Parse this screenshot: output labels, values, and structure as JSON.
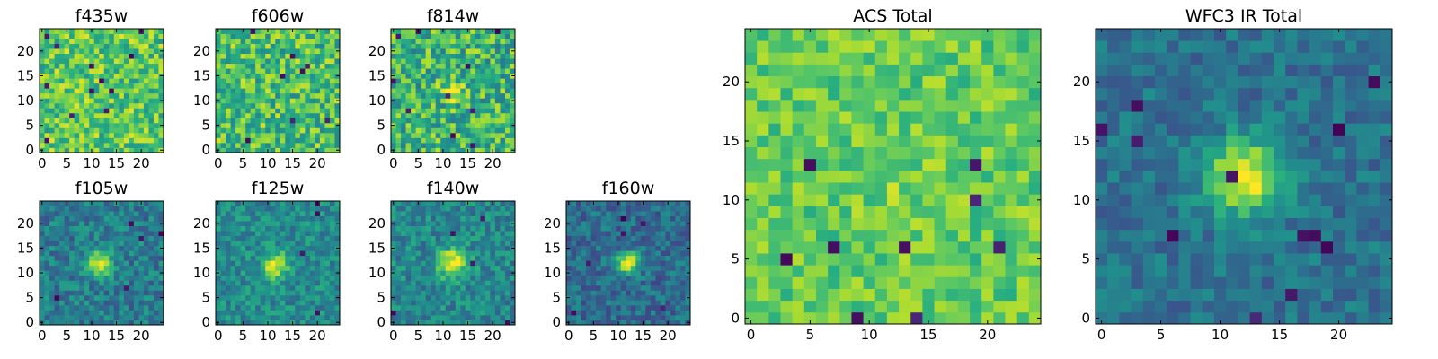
{
  "figure": {
    "description_free": true,
    "colormap": "viridis",
    "colors": {
      "viridis_dark": "#440154",
      "viridis_mid": "#21918c",
      "viridis_bright": "#fde725",
      "axes_frame": "#000000"
    }
  },
  "chart_data": [
    {
      "type": "heatmap",
      "title": "f435w",
      "grid_size": 25,
      "xticks": [
        0,
        5,
        10,
        15,
        20
      ],
      "yticks": [
        0,
        5,
        10,
        15,
        20
      ],
      "xlim": [
        -0.5,
        24.5
      ],
      "ylim": [
        -0.5,
        24.5
      ],
      "base_level": 0.74,
      "noise": 0.22,
      "source_peak": 0.0,
      "source_center": [
        12,
        12
      ],
      "source_sigma": 2.0,
      "dark_pixels": 12,
      "seed": 101
    },
    {
      "type": "heatmap",
      "title": "f606w",
      "grid_size": 25,
      "xticks": [
        0,
        5,
        10,
        15,
        20
      ],
      "yticks": [
        0,
        5,
        10,
        15,
        20
      ],
      "xlim": [
        -0.5,
        24.5
      ],
      "ylim": [
        -0.5,
        24.5
      ],
      "base_level": 0.7,
      "noise": 0.24,
      "source_peak": 0.0,
      "source_center": [
        12,
        12
      ],
      "source_sigma": 2.0,
      "dark_pixels": 8,
      "seed": 202
    },
    {
      "type": "heatmap",
      "title": "f814w",
      "grid_size": 25,
      "xticks": [
        0,
        5,
        10,
        15,
        20
      ],
      "yticks": [
        0,
        5,
        10,
        15,
        20
      ],
      "xlim": [
        -0.5,
        24.5
      ],
      "ylim": [
        -0.5,
        24.5
      ],
      "base_level": 0.66,
      "noise": 0.25,
      "source_peak": 0.25,
      "source_center": [
        12,
        12
      ],
      "source_sigma": 1.5,
      "dark_pixels": 10,
      "seed": 303
    },
    {
      "type": "heatmap",
      "title": "f105w",
      "grid_size": 25,
      "xticks": [
        0,
        5,
        10,
        15,
        20
      ],
      "yticks": [
        0,
        5,
        10,
        15,
        20
      ],
      "xlim": [
        -0.5,
        24.5
      ],
      "ylim": [
        -0.5,
        24.5
      ],
      "base_level": 0.42,
      "noise": 0.16,
      "source_peak": 0.55,
      "source_center": [
        11.5,
        12
      ],
      "source_sigma": 1.8,
      "dark_pixels": 5,
      "seed": 404
    },
    {
      "type": "heatmap",
      "title": "f125w",
      "grid_size": 25,
      "xticks": [
        0,
        5,
        10,
        15,
        20
      ],
      "yticks": [
        0,
        5,
        10,
        15,
        20
      ],
      "xlim": [
        -0.5,
        24.5
      ],
      "ylim": [
        -0.5,
        24.5
      ],
      "base_level": 0.48,
      "noise": 0.15,
      "source_peak": 0.5,
      "source_center": [
        11.5,
        11.5
      ],
      "source_sigma": 1.8,
      "dark_pixels": 4,
      "seed": 505
    },
    {
      "type": "heatmap",
      "title": "f140w",
      "grid_size": 25,
      "xticks": [
        0,
        5,
        10,
        15,
        20
      ],
      "yticks": [
        0,
        5,
        10,
        15,
        20
      ],
      "xlim": [
        -0.5,
        24.5
      ],
      "ylim": [
        -0.5,
        24.5
      ],
      "base_level": 0.47,
      "noise": 0.16,
      "source_peak": 0.55,
      "source_center": [
        12,
        12
      ],
      "source_sigma": 2.0,
      "dark_pixels": 5,
      "seed": 606
    },
    {
      "type": "heatmap",
      "title": "f160w",
      "grid_size": 25,
      "xticks": [
        0,
        5,
        10,
        15,
        20
      ],
      "yticks": [
        0,
        5,
        10,
        15,
        20
      ],
      "xlim": [
        -0.5,
        24.5
      ],
      "ylim": [
        -0.5,
        24.5
      ],
      "base_level": 0.36,
      "noise": 0.15,
      "source_peak": 0.65,
      "source_center": [
        12,
        12
      ],
      "source_sigma": 1.5,
      "dark_pixels": 6,
      "seed": 707
    },
    {
      "type": "heatmap",
      "title": "ACS Total",
      "grid_size": 25,
      "xticks": [
        0,
        5,
        10,
        15,
        20
      ],
      "yticks": [
        0,
        5,
        10,
        15,
        20
      ],
      "xlim": [
        -0.5,
        24.5
      ],
      "ylim": [
        -0.5,
        24.5
      ],
      "base_level": 0.76,
      "noise": 0.14,
      "source_peak": 0.05,
      "source_center": [
        12,
        12
      ],
      "source_sigma": 2.0,
      "dark_pixels": 10,
      "seed": 808
    },
    {
      "type": "heatmap",
      "title": "WFC3 IR Total",
      "grid_size": 25,
      "xticks": [
        0,
        5,
        10,
        15,
        20
      ],
      "yticks": [
        0,
        5,
        10,
        15,
        20
      ],
      "xlim": [
        -0.5,
        24.5
      ],
      "ylim": [
        -0.5,
        24.5
      ],
      "base_level": 0.38,
      "noise": 0.12,
      "source_peak": 0.62,
      "source_center": [
        12,
        12
      ],
      "source_sigma": 2.2,
      "dark_pixels": 12,
      "seed": 909
    }
  ]
}
